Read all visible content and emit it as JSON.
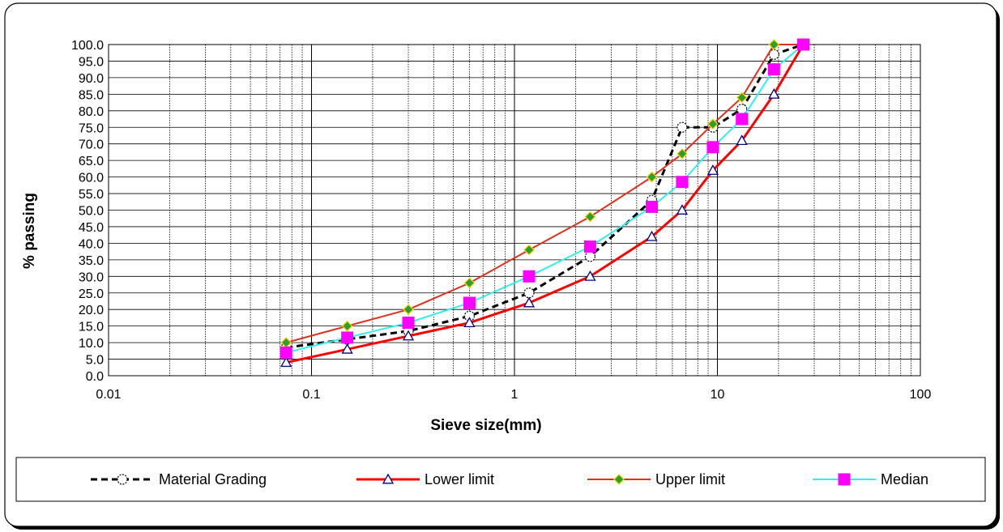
{
  "chart_data": {
    "type": "line",
    "x_scale": "log",
    "xlabel": "Sieve size(mm)",
    "ylabel": "% passing",
    "xlim": [
      0.01,
      100
    ],
    "ylim": [
      0,
      100
    ],
    "x_ticks": [
      "0.01",
      "0.1",
      "1",
      "10",
      "100"
    ],
    "y_ticks": [
      "0.0",
      "5.0",
      "10.0",
      "15.0",
      "20.0",
      "25.0",
      "30.0",
      "35.0",
      "40.0",
      "45.0",
      "50.0",
      "55.0",
      "60.0",
      "65.0",
      "70.0",
      "75.0",
      "80.0",
      "85.0",
      "90.0",
      "95.0",
      "100.0"
    ],
    "grid": true,
    "legend_position": "bottom",
    "series": [
      {
        "name": "Material Grading",
        "color": "#000000",
        "line_style": "dashed",
        "marker": "circle",
        "x": [
          0.075,
          0.15,
          0.3,
          0.6,
          1.18,
          2.36,
          4.75,
          6.7,
          9.5,
          13.2,
          19,
          26.5
        ],
        "y": [
          8.5,
          11,
          13.5,
          18,
          25,
          36,
          53,
          75,
          75,
          80.5,
          97,
          100
        ]
      },
      {
        "name": "Lower limit",
        "color": "#ff0000",
        "line_style": "solid",
        "marker": "triangle",
        "x": [
          0.075,
          0.15,
          0.3,
          0.6,
          1.18,
          2.36,
          4.75,
          6.7,
          9.5,
          13.2,
          19,
          26.5
        ],
        "y": [
          4,
          8,
          12,
          16,
          22,
          30,
          42,
          50,
          62,
          71,
          85,
          100
        ]
      },
      {
        "name": "Upper limit",
        "color": "#e0301e",
        "line_style": "solid",
        "marker": "diamond",
        "x": [
          0.075,
          0.15,
          0.3,
          0.6,
          1.18,
          2.36,
          4.75,
          6.7,
          9.5,
          13.2,
          19,
          26.5
        ],
        "y": [
          10,
          15,
          20,
          28,
          38,
          48,
          60,
          67,
          76,
          84,
          100,
          100
        ]
      },
      {
        "name": "Median",
        "color": "#33eeee",
        "line_style": "solid",
        "marker": "square",
        "x": [
          0.075,
          0.15,
          0.3,
          0.6,
          1.18,
          2.36,
          4.75,
          6.7,
          9.5,
          13.2,
          19,
          26.5
        ],
        "y": [
          7,
          11.5,
          16,
          22,
          30,
          39,
          51,
          58.5,
          69,
          77.5,
          92.5,
          100
        ]
      }
    ]
  }
}
